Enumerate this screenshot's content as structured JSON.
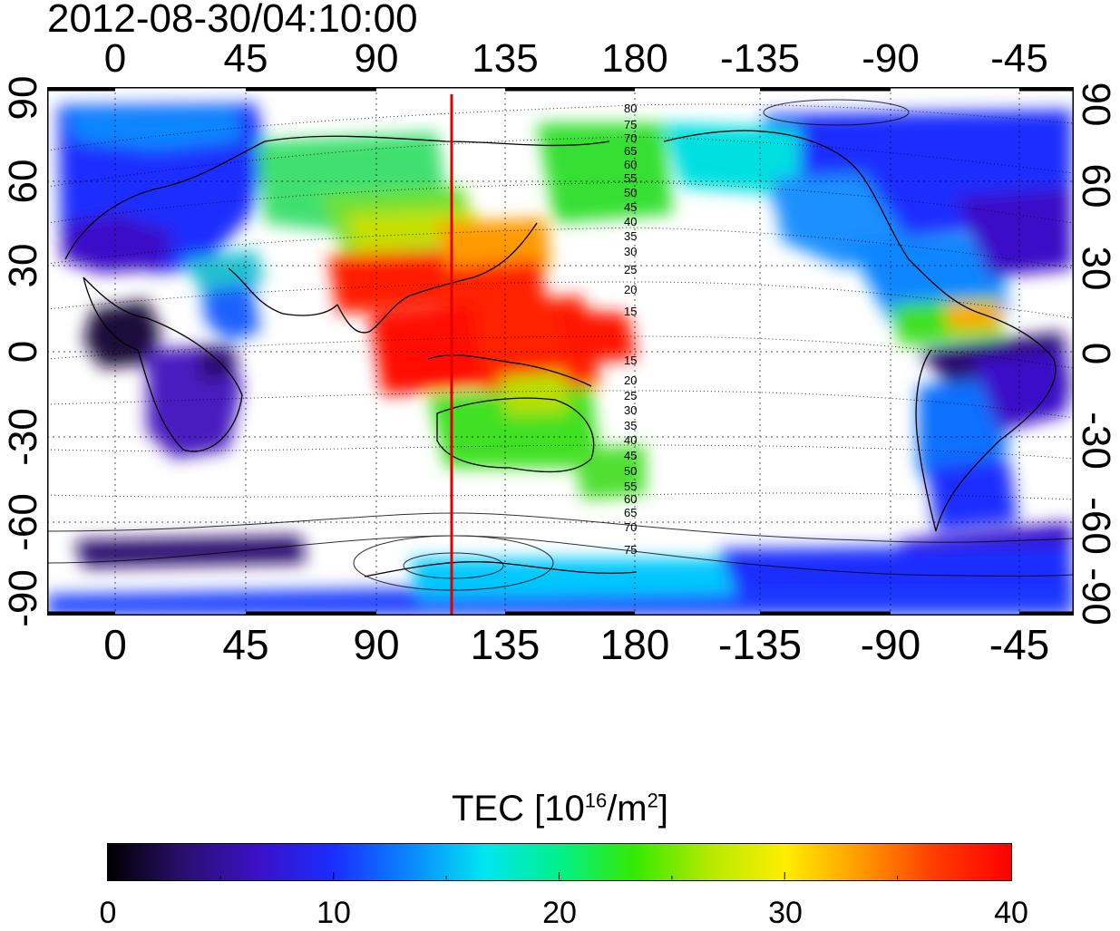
{
  "title": "2012-08-30/04:10:00",
  "lon_ticks": [
    "0",
    "45",
    "90",
    "135",
    "180",
    "-135",
    "-90",
    "-45"
  ],
  "lat_ticks": [
    "90",
    "60",
    "30",
    "0",
    "-30",
    "-60",
    "-90"
  ],
  "contour_labels_north": [
    "80",
    "75",
    "70",
    "65",
    "60",
    "55",
    "50",
    "45",
    "40",
    "35",
    "30",
    "25",
    "20",
    "15"
  ],
  "contour_labels_south": [
    "15",
    "20",
    "25",
    "30",
    "35",
    "40",
    "45",
    "50",
    "55",
    "60",
    "65",
    "70",
    "75"
  ],
  "colorbar": {
    "title_prefix": "TEC  [10",
    "title_exp": "16",
    "title_mid": "/m",
    "title_exp2": "2",
    "title_suffix": "]",
    "min": 0,
    "max": 40,
    "labels": [
      "0",
      "10",
      "20",
      "30",
      "40"
    ],
    "colors": [
      "#000000",
      "#2a0f6e",
      "#3b10c8",
      "#1a2dff",
      "#0a86ff",
      "#00e6f0",
      "#00f08a",
      "#35ea00",
      "#b5ea00",
      "#ffee00",
      "#ff9a00",
      "#ff3a00",
      "#ff0000"
    ]
  },
  "marker": {
    "longitude": 117,
    "color": "#e00000"
  },
  "colors": {
    "land_line": "#000000",
    "ocean": "#ffffff",
    "grid": "#000000"
  }
}
